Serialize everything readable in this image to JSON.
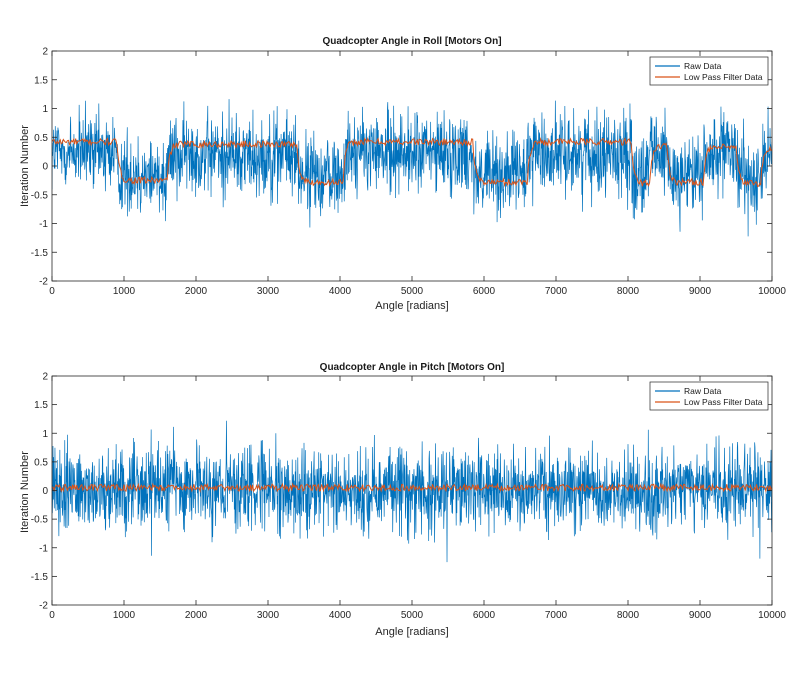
{
  "chart_data": [
    {
      "type": "line",
      "title": "Quadcopter Angle in Roll [Motors On]",
      "xlabel": "Angle [radians]",
      "ylabel": "Iteration Number",
      "xlim": [
        0,
        10000
      ],
      "ylim": [
        -2,
        2
      ],
      "xticks": [
        0,
        1000,
        2000,
        3000,
        4000,
        5000,
        6000,
        7000,
        8000,
        9000,
        10000
      ],
      "yticks": [
        -2,
        -1.5,
        -1,
        -0.5,
        0,
        0.5,
        1,
        1.5,
        2
      ],
      "legend_position": "top-right",
      "series": [
        {
          "name": "Raw Data",
          "color": "#0072BD",
          "noise_amplitude": 0.6,
          "points_per_unit_x": 1
        },
        {
          "name": "Low Pass Filter Data",
          "color": "#D95319",
          "segments": [
            {
              "x": [
                0,
                900
              ],
              "y": 0.42
            },
            {
              "x": [
                900,
                1600
              ],
              "y": -0.25
            },
            {
              "x": [
                1600,
                3400
              ],
              "y": 0.38
            },
            {
              "x": [
                3400,
                4050
              ],
              "y": -0.28
            },
            {
              "x": [
                4050,
                5850
              ],
              "y": 0.42
            },
            {
              "x": [
                5850,
                6600
              ],
              "y": -0.28
            },
            {
              "x": [
                6600,
                8050
              ],
              "y": 0.42
            },
            {
              "x": [
                8050,
                8300
              ],
              "y": -0.3
            },
            {
              "x": [
                8300,
                8550
              ],
              "y": 0.35
            },
            {
              "x": [
                8550,
                9050
              ],
              "y": -0.28
            },
            {
              "x": [
                9050,
                9500
              ],
              "y": 0.32
            },
            {
              "x": [
                9500,
                9850
              ],
              "y": -0.3
            },
            {
              "x": [
                9850,
                10000
              ],
              "y": 0.3
            }
          ]
        }
      ]
    },
    {
      "type": "line",
      "title": "Quadcopter Angle in Pitch [Motors On]",
      "xlabel": "Angle [radians]",
      "ylabel": "Iteration Number",
      "xlim": [
        0,
        10000
      ],
      "ylim": [
        -2,
        2
      ],
      "xticks": [
        0,
        1000,
        2000,
        3000,
        4000,
        5000,
        6000,
        7000,
        8000,
        9000,
        10000
      ],
      "yticks": [
        -2,
        -1.5,
        -1,
        -0.5,
        0,
        0.5,
        1,
        1.5,
        2
      ],
      "legend_position": "top-right",
      "series": [
        {
          "name": "Raw Data",
          "color": "#0072BD",
          "noise_amplitude": 0.6,
          "points_per_unit_x": 1
        },
        {
          "name": "Low Pass Filter Data",
          "color": "#D95319",
          "segments": [
            {
              "x": [
                0,
                10000
              ],
              "y": 0.05
            }
          ]
        }
      ]
    }
  ]
}
